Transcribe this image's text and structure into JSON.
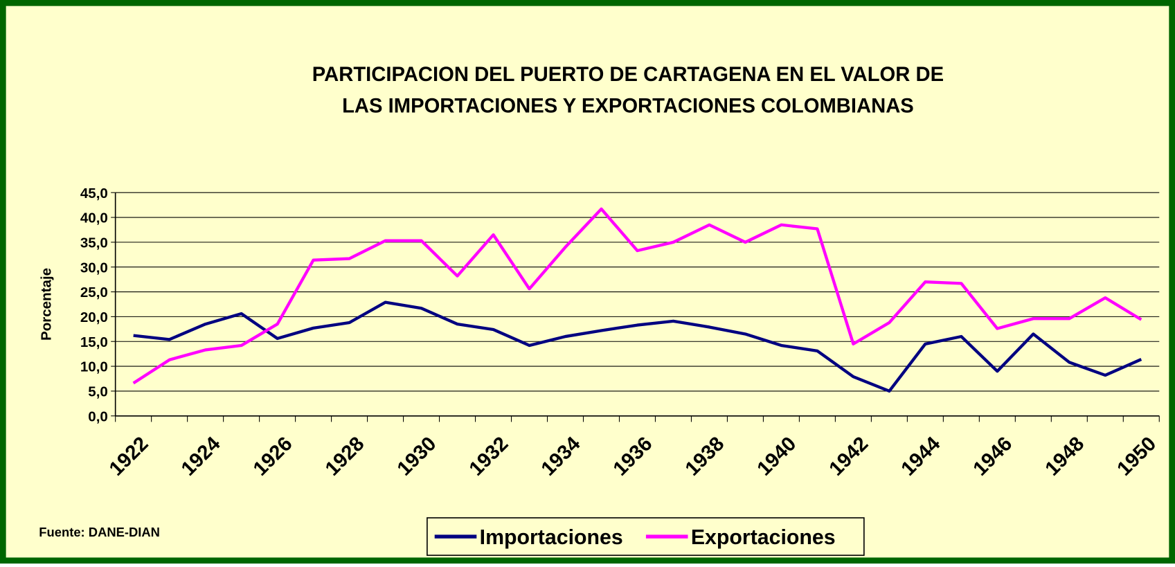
{
  "chart_data": {
    "type": "line",
    "title": [
      "PARTICIPACION DEL PUERTO DE CARTAGENA EN EL VALOR DE",
      "LAS IMPORTACIONES Y EXPORTACIONES COLOMBIANAS"
    ],
    "y_label": "Porcentaje",
    "note": "Fuente: DANE-DIAN",
    "categories": [
      "1922",
      null,
      "1924",
      null,
      "1926",
      null,
      "1928",
      null,
      "1930",
      null,
      "1932",
      null,
      "1934",
      null,
      "1936",
      null,
      "1938",
      null,
      "1940",
      null,
      "1942",
      null,
      "1944",
      null,
      "1946",
      null,
      "1948",
      null,
      "1950"
    ],
    "series": [
      {
        "name": "Importaciones",
        "color": "#000080",
        "values": [
          16.2,
          15.4,
          18.5,
          20.6,
          15.6,
          17.7,
          18.8,
          22.9,
          21.7,
          18.5,
          17.4,
          14.2,
          16.0,
          17.2,
          18.3,
          19.1,
          17.9,
          16.5,
          14.2,
          13.1,
          7.9,
          5.0,
          14.5,
          16.0,
          9.0,
          16.5,
          10.8,
          8.2,
          11.4
        ]
      },
      {
        "name": "Exportaciones",
        "color": "#ff00ff",
        "values": [
          6.6,
          11.3,
          13.3,
          14.2,
          18.5,
          31.4,
          31.7,
          35.3,
          35.3,
          28.2,
          36.5,
          25.6,
          34.0,
          41.7,
          33.3,
          35.0,
          38.5,
          35.0,
          38.5,
          37.7,
          14.5,
          18.8,
          27.0,
          26.7,
          17.6,
          19.6,
          19.6,
          23.8,
          19.4
        ]
      }
    ],
    "ylim": [
      0,
      45
    ],
    "yticks": [
      {
        "value": 0,
        "label": "0,0"
      },
      {
        "value": 5,
        "label": "5,0"
      },
      {
        "value": 10,
        "label": "10,0"
      },
      {
        "value": 15,
        "label": "15,0"
      },
      {
        "value": 20,
        "label": "20,0"
      },
      {
        "value": 25,
        "label": "25,0"
      },
      {
        "value": 30,
        "label": "30,0"
      },
      {
        "value": 35,
        "label": "35,0"
      },
      {
        "value": 40,
        "label": "40,0"
      },
      {
        "value": 45,
        "label": "45,0"
      }
    ],
    "grid": true,
    "legend": "bottom"
  }
}
